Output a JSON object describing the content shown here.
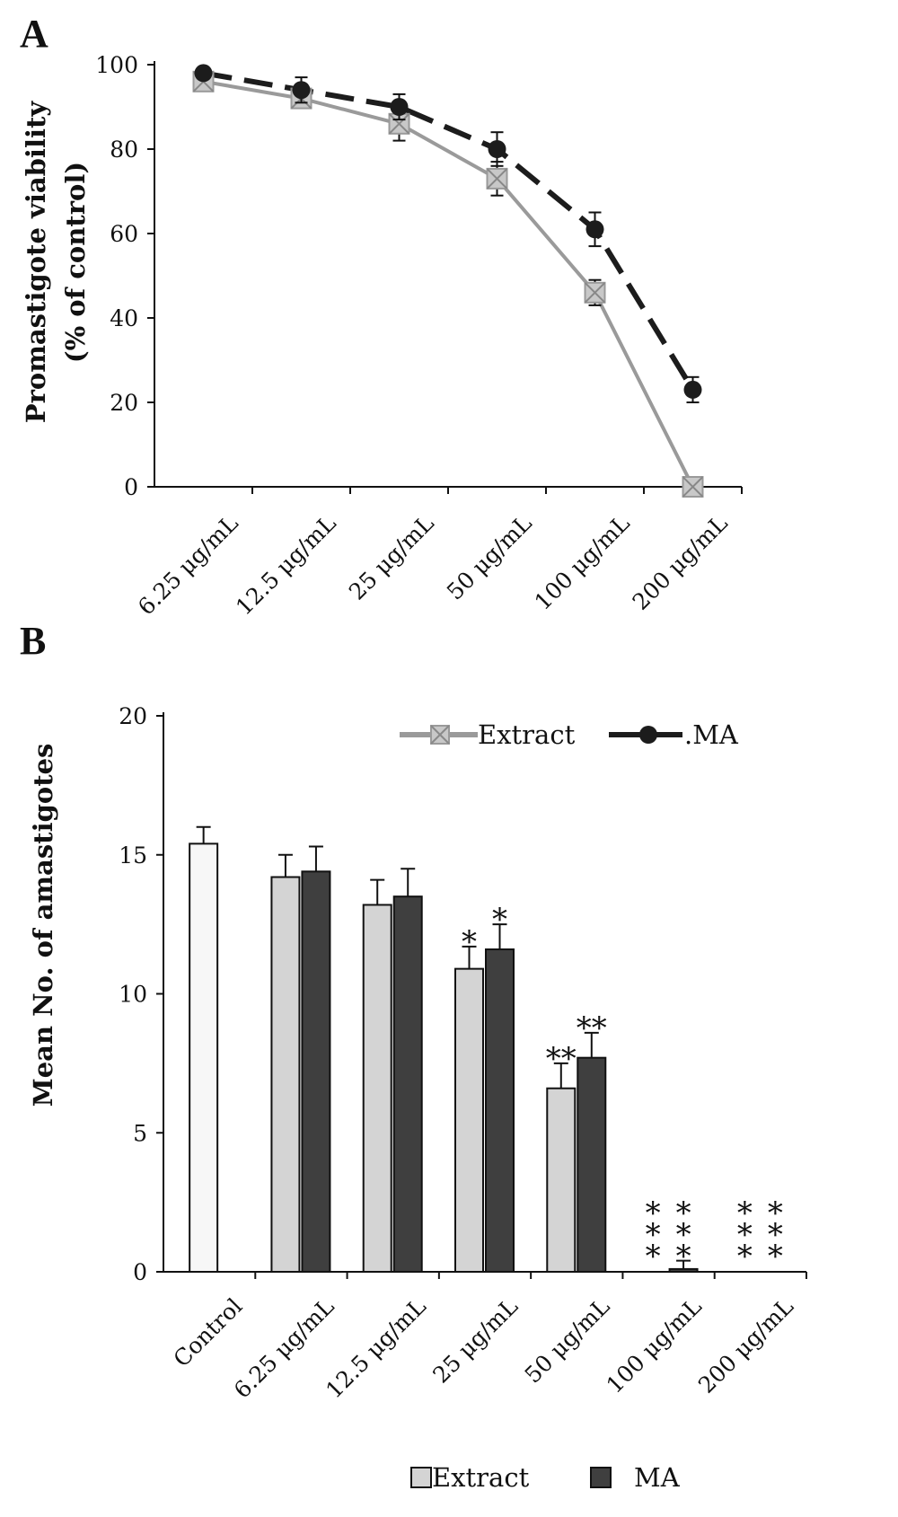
{
  "colors": {
    "extract_line": "#9a9a9a",
    "ma_line": "#1c1c1c",
    "extract_bar": "#d4d4d4",
    "ma_bar": "#3f3f3f",
    "control_bar": "#f7f7f7",
    "asterisk": "#1f2a55"
  },
  "chart_data": [
    {
      "panel": "A",
      "type": "line",
      "ylabel": "Promastigote viability",
      "ylabel2": "(% of control)",
      "ylim": [
        0,
        100
      ],
      "yticks": [
        0,
        20,
        40,
        60,
        80,
        100
      ],
      "categories": [
        "6.25 μg/mL",
        "12.5 μg/mL",
        "25 μg/mL",
        "50 μg/mL",
        "100 μg/mL",
        "200 μg/mL"
      ],
      "series": [
        {
          "name": "Extract",
          "values": [
            96,
            92,
            86,
            73,
            46,
            0
          ],
          "errors": [
            2,
            1,
            4,
            4,
            3,
            0
          ]
        },
        {
          "name": ".MA",
          "values": [
            98,
            94,
            90,
            80,
            61,
            23
          ],
          "errors": [
            1,
            3,
            3,
            4,
            4,
            3
          ]
        }
      ]
    },
    {
      "panel": "B",
      "type": "bar",
      "ylabel": "Mean No. of amastigotes",
      "ylim": [
        0,
        20
      ],
      "yticks": [
        0,
        5,
        10,
        15,
        20
      ],
      "categories": [
        "Control",
        "6.25 μg/mL",
        "12.5 μg/mL",
        "25 μg/mL",
        "50 μg/mL",
        "100 μg/mL",
        "200 μg/mL"
      ],
      "series": [
        {
          "name": "Extract",
          "values": [
            15.4,
            14.2,
            13.2,
            10.9,
            6.6,
            0,
            0
          ],
          "errors": [
            0.6,
            0.8,
            0.9,
            0.8,
            0.9,
            0,
            0
          ]
        },
        {
          "name": "MA",
          "values": [
            null,
            14.4,
            13.5,
            11.6,
            7.7,
            0.1,
            0
          ],
          "errors": [
            null,
            0.9,
            1.0,
            0.9,
            0.9,
            0.3,
            0
          ]
        }
      ],
      "significance": [
        {
          "category": "25 μg/mL",
          "extract": "*",
          "ma": "*"
        },
        {
          "category": "50 μg/mL",
          "extract": "**",
          "ma": "**"
        },
        {
          "category": "100 μg/mL",
          "extract": "***",
          "ma": "***"
        },
        {
          "category": "200 μg/mL",
          "extract": "***",
          "ma": "***"
        }
      ]
    }
  ],
  "panel_a": {
    "letter": "A"
  },
  "panel_b": {
    "letter": "B"
  },
  "line_legend": {
    "extract": "Extract",
    "ma": ".MA"
  },
  "bar_legend": {
    "extract": "Extract",
    "ma": "MA"
  }
}
